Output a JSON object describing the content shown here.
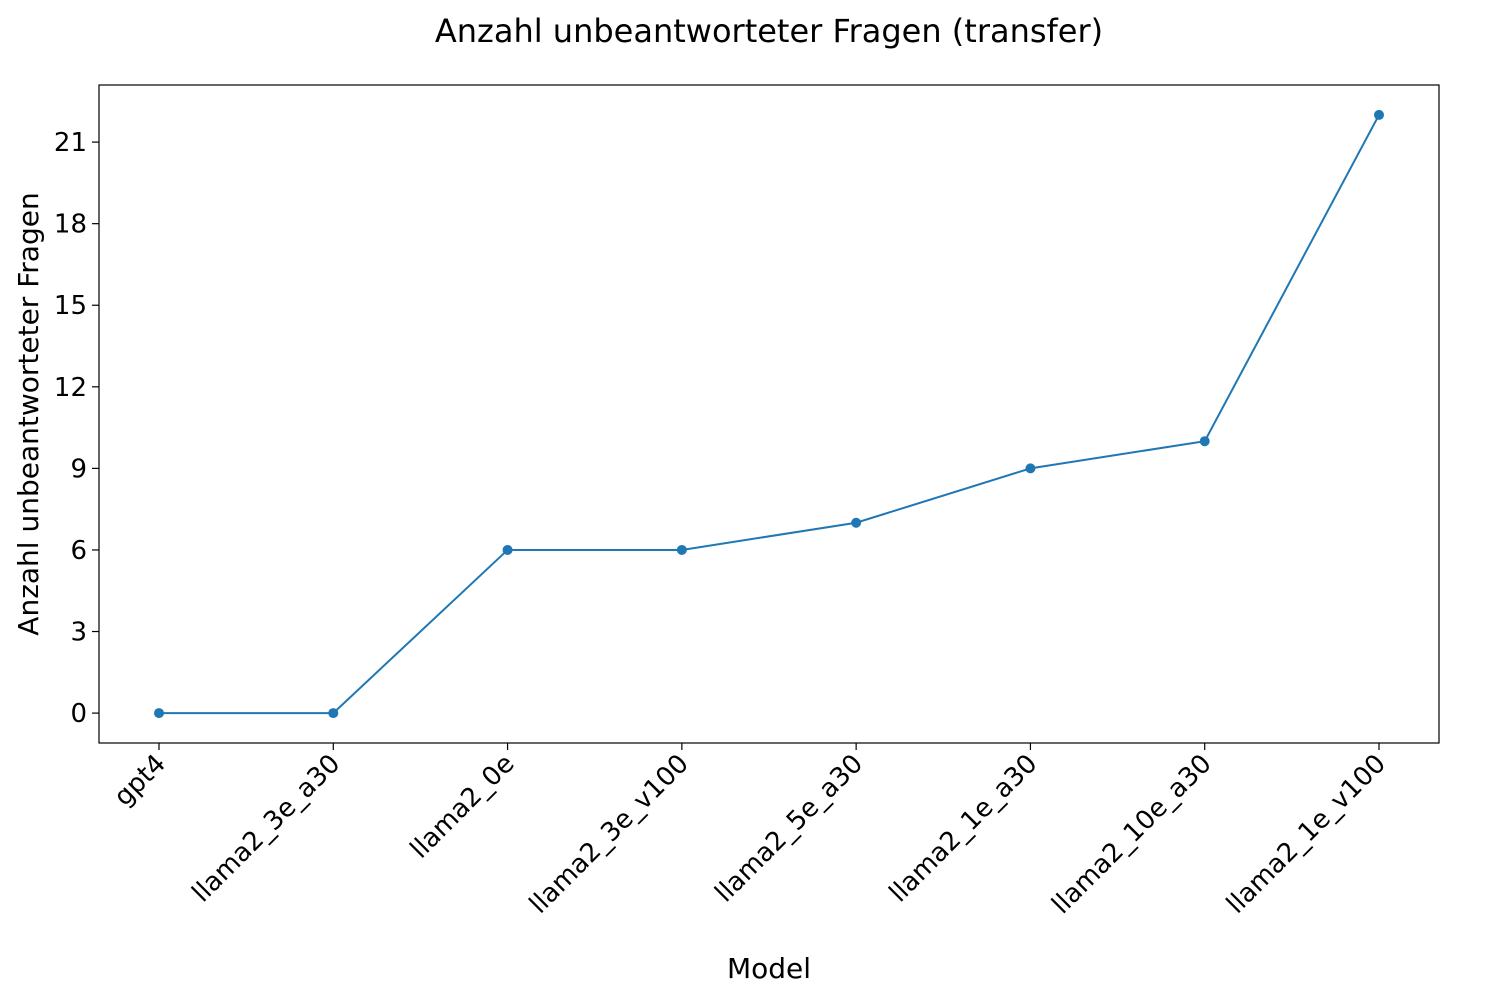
{
  "chart_data": {
    "type": "line",
    "title": "Anzahl unbeantworteter Fragen (transfer)",
    "xlabel": "Model",
    "ylabel": "Anzahl unbeantworteter Fragen",
    "categories": [
      "gpt4",
      "llama2_3e_a30",
      "llama2_0e",
      "llama2_3e_v100",
      "llama2_5e_a30",
      "llama2_1e_a30",
      "llama2_10e_a30",
      "llama2_1e_v100"
    ],
    "series": [
      {
        "values": [
          0,
          0,
          6,
          6,
          7,
          9,
          10,
          22
        ],
        "color": "#1f77b4"
      }
    ],
    "ylim": [
      -1.1,
      23.1
    ],
    "yticks": [
      0,
      3,
      6,
      9,
      12,
      15,
      18,
      21
    ],
    "ytick_labels": [
      "0",
      "3",
      "6",
      "9",
      "12",
      "15",
      "18",
      "21"
    ],
    "xtick_rotation_deg": 45,
    "markers": true,
    "grid": false,
    "legend": false
  }
}
